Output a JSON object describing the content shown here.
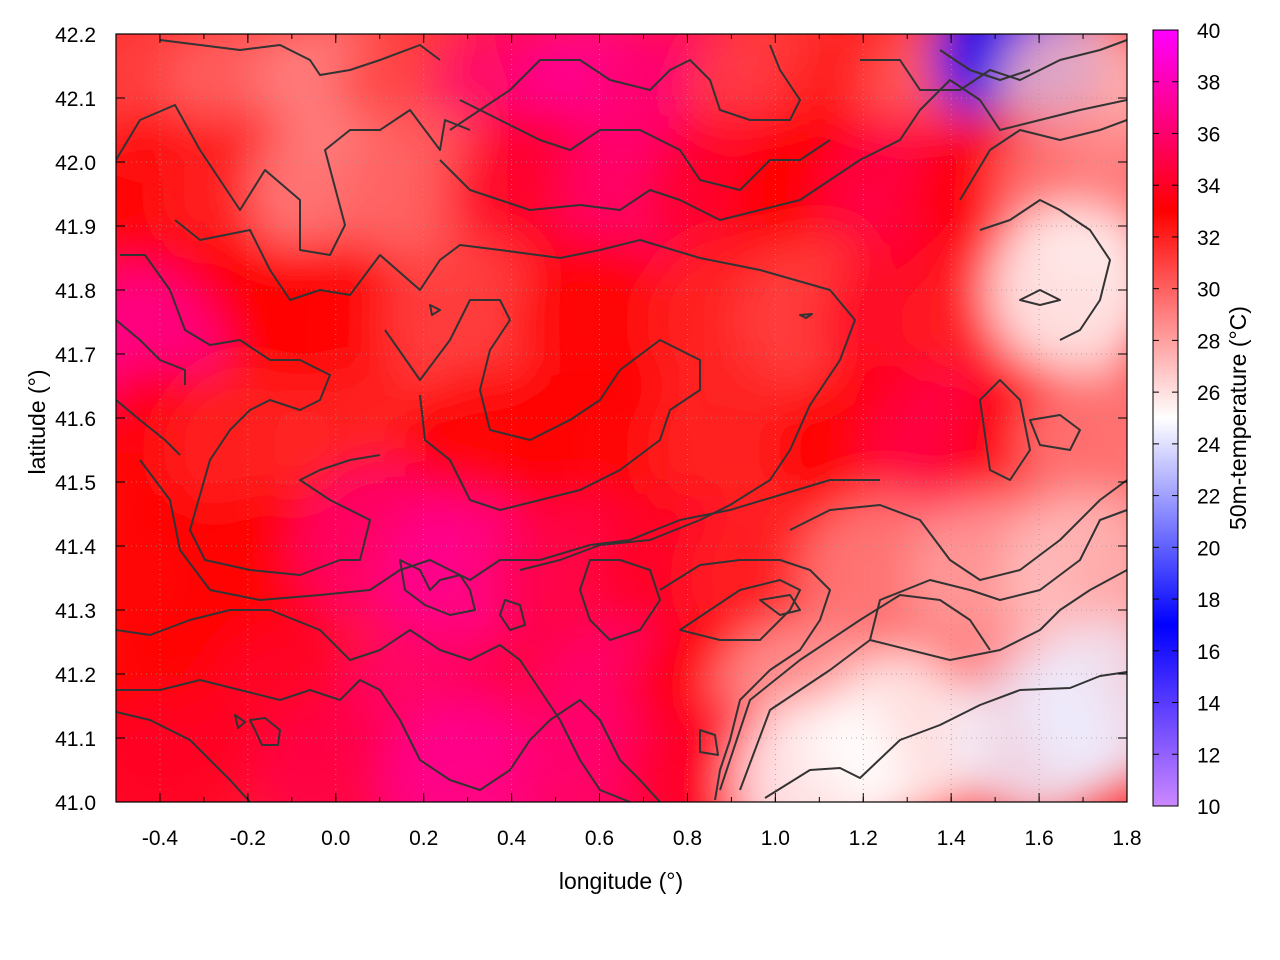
{
  "chart_data": {
    "type": "heatmap",
    "title": "",
    "xlabel": "longitude (°)",
    "ylabel": "latitude (°)",
    "colorbar_label": "50m-temperature (°C)",
    "xlim": [
      -0.5,
      1.8
    ],
    "ylim": [
      41.0,
      42.2
    ],
    "x_ticks": [
      -0.4,
      -0.2,
      0.0,
      0.2,
      0.4,
      0.6,
      0.8,
      1.0,
      1.2,
      1.4,
      1.6,
      1.8
    ],
    "x_tick_labels": [
      "-0.4",
      "-0.2",
      "0.0",
      "0.2",
      "0.4",
      "0.6",
      "0.8",
      "1.0",
      "1.2",
      "1.4",
      "1.6",
      "1.8"
    ],
    "y_ticks": [
      41.0,
      41.1,
      41.2,
      41.3,
      41.4,
      41.5,
      41.6,
      41.7,
      41.8,
      41.9,
      42.0,
      42.1,
      42.2
    ],
    "y_tick_labels": [
      "41.0",
      "41.1",
      "41.2",
      "41.3",
      "41.4",
      "41.5",
      "41.6",
      "41.7",
      "41.8",
      "41.9",
      "42.0",
      "42.1",
      "42.2"
    ],
    "colorbar_range": [
      10,
      40
    ],
    "colorbar_ticks": [
      10,
      12,
      14,
      16,
      18,
      20,
      22,
      24,
      26,
      28,
      30,
      32,
      34,
      36,
      38,
      40
    ],
    "colorbar_tick_labels": [
      "10",
      "12",
      "14",
      "16",
      "18",
      "20",
      "22",
      "24",
      "26",
      "28",
      "30",
      "32",
      "34",
      "36",
      "38",
      "40"
    ],
    "colormap": [
      {
        "value": 10,
        "color": "#cc88ff"
      },
      {
        "value": 17,
        "color": "#0000ff"
      },
      {
        "value": 25,
        "color": "#ffffff"
      },
      {
        "value": 33,
        "color": "#ff0000"
      },
      {
        "value": 40,
        "color": "#ff00ff"
      }
    ],
    "grid": true,
    "contour_color": "#333333",
    "temperature_field": [
      {
        "lon": -0.4,
        "lat": 42.1,
        "value": 31
      },
      {
        "lon": -0.2,
        "lat": 42.1,
        "value": 30
      },
      {
        "lon": 0.0,
        "lat": 42.1,
        "value": 29
      },
      {
        "lon": 0.2,
        "lat": 42.1,
        "value": 31
      },
      {
        "lon": 0.4,
        "lat": 42.1,
        "value": 36
      },
      {
        "lon": 0.6,
        "lat": 42.1,
        "value": 37
      },
      {
        "lon": 0.8,
        "lat": 42.1,
        "value": 36
      },
      {
        "lon": 1.0,
        "lat": 42.1,
        "value": 31
      },
      {
        "lon": 1.2,
        "lat": 42.1,
        "value": 32
      },
      {
        "lon": 1.4,
        "lat": 42.1,
        "value": 30
      },
      {
        "lon": 1.55,
        "lat": 42.17,
        "value": 17
      },
      {
        "lon": 1.7,
        "lat": 42.1,
        "value": 27
      },
      {
        "lon": -0.4,
        "lat": 41.95,
        "value": 33
      },
      {
        "lon": -0.2,
        "lat": 41.95,
        "value": 32
      },
      {
        "lon": 0.0,
        "lat": 41.95,
        "value": 29
      },
      {
        "lon": 0.2,
        "lat": 41.95,
        "value": 30
      },
      {
        "lon": 0.45,
        "lat": 41.95,
        "value": 34
      },
      {
        "lon": 0.7,
        "lat": 41.95,
        "value": 36
      },
      {
        "lon": 0.9,
        "lat": 41.95,
        "value": 34
      },
      {
        "lon": 1.1,
        "lat": 41.95,
        "value": 33
      },
      {
        "lon": 1.3,
        "lat": 41.95,
        "value": 35
      },
      {
        "lon": 1.5,
        "lat": 41.95,
        "value": 33
      },
      {
        "lon": 1.7,
        "lat": 41.95,
        "value": 29
      },
      {
        "lon": -0.4,
        "lat": 41.75,
        "value": 34
      },
      {
        "lon": -0.2,
        "lat": 41.75,
        "value": 33
      },
      {
        "lon": 0.0,
        "lat": 41.75,
        "value": 33
      },
      {
        "lon": 0.3,
        "lat": 41.75,
        "value": 31
      },
      {
        "lon": 0.6,
        "lat": 41.75,
        "value": 33
      },
      {
        "lon": 0.9,
        "lat": 41.75,
        "value": 32
      },
      {
        "lon": 1.1,
        "lat": 41.75,
        "value": 31
      },
      {
        "lon": 1.3,
        "lat": 41.75,
        "value": 34
      },
      {
        "lon": 1.5,
        "lat": 41.75,
        "value": 32
      },
      {
        "lon": 1.68,
        "lat": 41.8,
        "value": 25
      },
      {
        "lon": -0.45,
        "lat": 41.7,
        "value": 37
      },
      {
        "lon": -0.4,
        "lat": 41.55,
        "value": 33
      },
      {
        "lon": -0.2,
        "lat": 41.55,
        "value": 32
      },
      {
        "lon": 0.05,
        "lat": 41.55,
        "value": 32
      },
      {
        "lon": 0.35,
        "lat": 41.55,
        "value": 33
      },
      {
        "lon": 0.6,
        "lat": 41.55,
        "value": 33
      },
      {
        "lon": 0.9,
        "lat": 41.55,
        "value": 32
      },
      {
        "lon": 1.2,
        "lat": 41.55,
        "value": 33
      },
      {
        "lon": 1.4,
        "lat": 41.55,
        "value": 35
      },
      {
        "lon": 1.6,
        "lat": 41.55,
        "value": 33
      },
      {
        "lon": 1.75,
        "lat": 41.55,
        "value": 29
      },
      {
        "lon": -0.4,
        "lat": 41.35,
        "value": 33
      },
      {
        "lon": -0.15,
        "lat": 41.35,
        "value": 33
      },
      {
        "lon": 0.1,
        "lat": 41.4,
        "value": 36
      },
      {
        "lon": 0.3,
        "lat": 41.35,
        "value": 37
      },
      {
        "lon": 0.55,
        "lat": 41.35,
        "value": 35
      },
      {
        "lon": 0.8,
        "lat": 41.35,
        "value": 34
      },
      {
        "lon": 1.0,
        "lat": 41.35,
        "value": 32
      },
      {
        "lon": 1.25,
        "lat": 41.35,
        "value": 29
      },
      {
        "lon": 1.5,
        "lat": 41.35,
        "value": 28
      },
      {
        "lon": 1.7,
        "lat": 41.35,
        "value": 27
      },
      {
        "lon": -0.4,
        "lat": 41.15,
        "value": 33
      },
      {
        "lon": -0.1,
        "lat": 41.15,
        "value": 34
      },
      {
        "lon": 0.2,
        "lat": 41.15,
        "value": 36
      },
      {
        "lon": 0.45,
        "lat": 41.15,
        "value": 35
      },
      {
        "lon": 0.65,
        "lat": 41.15,
        "value": 36
      },
      {
        "lon": 0.85,
        "lat": 41.15,
        "value": 33
      },
      {
        "lon": 1.05,
        "lat": 41.15,
        "value": 28
      },
      {
        "lon": 1.3,
        "lat": 41.1,
        "value": 25
      },
      {
        "lon": 1.6,
        "lat": 41.1,
        "value": 24.5
      },
      {
        "lon": 1.75,
        "lat": 41.15,
        "value": 24.5
      },
      {
        "lon": -0.4,
        "lat": 41.03,
        "value": 34
      },
      {
        "lon": 0.0,
        "lat": 41.03,
        "value": 35
      },
      {
        "lon": 0.3,
        "lat": 41.03,
        "value": 37
      },
      {
        "lon": 0.6,
        "lat": 41.03,
        "value": 36
      },
      {
        "lon": 0.85,
        "lat": 41.03,
        "value": 34
      },
      {
        "lon": 1.1,
        "lat": 41.03,
        "value": 25
      }
    ]
  }
}
